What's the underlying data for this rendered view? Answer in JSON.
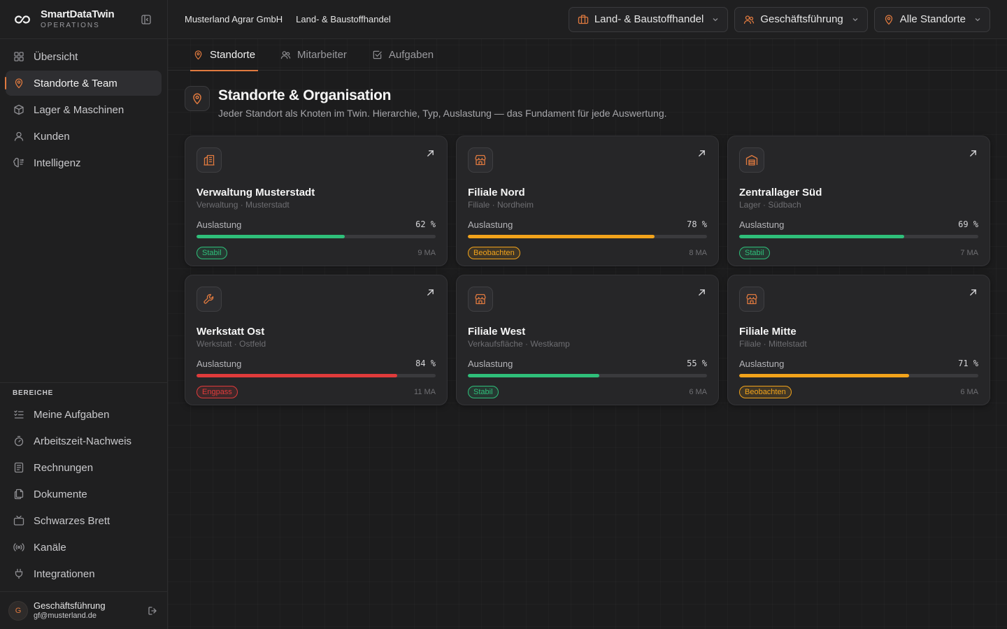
{
  "brand": {
    "name": "SmartDataTwin",
    "sub": "OPERATIONS"
  },
  "nav": [
    {
      "label": "Übersicht",
      "icon": "grid-icon"
    },
    {
      "label": "Standorte & Team",
      "icon": "map-pin-icon",
      "active": true
    },
    {
      "label": "Lager & Maschinen",
      "icon": "box-icon"
    },
    {
      "label": "Kunden",
      "icon": "user-icon"
    },
    {
      "label": "Intelligenz",
      "icon": "brain-icon"
    }
  ],
  "section": {
    "label": "BEREICHE",
    "items": [
      {
        "label": "Meine Aufgaben",
        "icon": "checklist-icon"
      },
      {
        "label": "Arbeitszeit-Nachweis",
        "icon": "stopwatch-icon"
      },
      {
        "label": "Rechnungen",
        "icon": "receipt-icon"
      },
      {
        "label": "Dokumente",
        "icon": "documents-icon"
      },
      {
        "label": "Schwarzes Brett",
        "icon": "tv-icon"
      },
      {
        "label": "Kanäle",
        "icon": "broadcast-icon"
      },
      {
        "label": "Integrationen",
        "icon": "plug-icon"
      }
    ]
  },
  "user": {
    "initial": "G",
    "name": "Geschäftsführung",
    "email": "gf@musterland.de"
  },
  "breadcrumb": {
    "company": "Musterland Agrar GmbH",
    "branch": "Land- & Baustoffhandel"
  },
  "filters": {
    "industry": "Land- & Baustoffhandel",
    "role": "Geschäftsführung",
    "location": "Alle Standorte"
  },
  "tabs": [
    {
      "label": "Standorte",
      "icon": "map-pin-icon",
      "active": true
    },
    {
      "label": "Mitarbeiter",
      "icon": "users-icon"
    },
    {
      "label": "Aufgaben",
      "icon": "checkbox-icon"
    }
  ],
  "page": {
    "title": "Standorte & Organisation",
    "subtitle": "Jeder Standort als Knoten im Twin. Hierarchie, Typ, Auslastung — das Fundament für jede Auswertung."
  },
  "utilization_label": "Auslastung",
  "status_colors": {
    "Stabil": "#2fbf7a",
    "Beobachten": "#f2a31b",
    "Engpass": "#e03b3b"
  },
  "locations": [
    {
      "name": "Verwaltung Musterstadt",
      "meta": "Verwaltung · Musterstadt",
      "icon": "building-icon",
      "pct_text": "62 %",
      "pct": 62,
      "status": "Stabil",
      "staff": "9 MA"
    },
    {
      "name": "Filiale Nord",
      "meta": "Filiale · Nordheim",
      "icon": "store-icon",
      "pct_text": "78 %",
      "pct": 78,
      "status": "Beobachten",
      "staff": "8 MA"
    },
    {
      "name": "Zentrallager Süd",
      "meta": "Lager · Südbach",
      "icon": "warehouse-icon",
      "pct_text": "69 %",
      "pct": 69,
      "status": "Stabil",
      "staff": "7 MA"
    },
    {
      "name": "Werkstatt Ost",
      "meta": "Werkstatt · Ostfeld",
      "icon": "wrench-icon",
      "pct_text": "84 %",
      "pct": 84,
      "status": "Engpass",
      "staff": "11 MA"
    },
    {
      "name": "Filiale West",
      "meta": "Verkaufsfläche · Westkamp",
      "icon": "store-icon",
      "pct_text": "55 %",
      "pct": 55,
      "status": "Stabil",
      "staff": "6 MA"
    },
    {
      "name": "Filiale Mitte",
      "meta": "Filiale · Mittelstadt",
      "icon": "store-icon",
      "pct_text": "71 %",
      "pct": 71,
      "status": "Beobachten",
      "staff": "6 MA"
    }
  ]
}
